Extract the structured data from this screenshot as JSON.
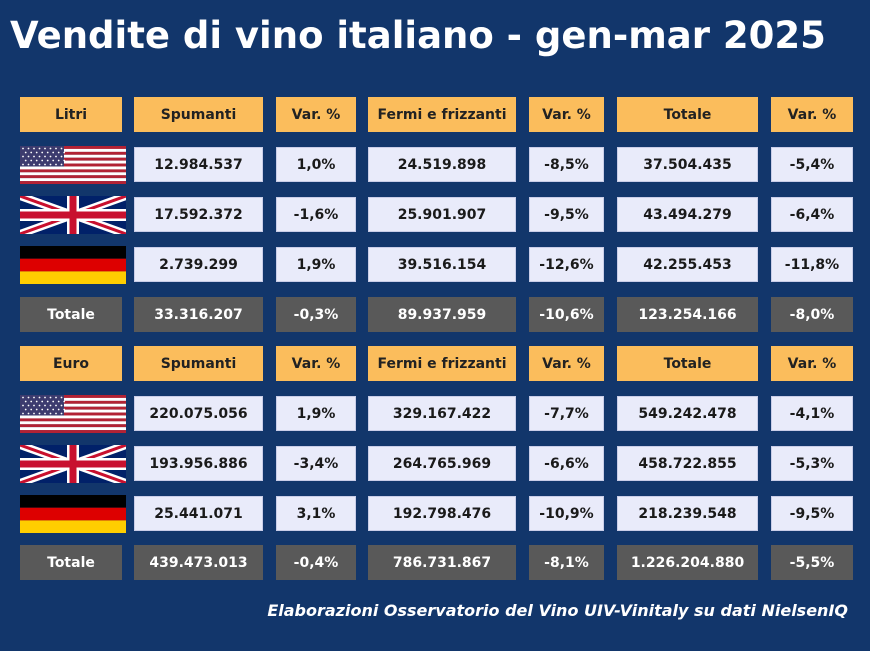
{
  "title": "Vendite di vino italiano - gen-mar 2025",
  "tables": [
    {
      "header": [
        "Litri",
        "Spumanti",
        "Var. %",
        "Fermi e frizzanti",
        "Var. %",
        "Totale",
        "Var. %"
      ],
      "rows": [
        [
          "12.984.537",
          "1,0%",
          "24.519.898",
          "-8,5%",
          "37.504.435",
          "-5,4%"
        ],
        [
          "17.592.372",
          "-1,6%",
          "25.901.907",
          "-9,5%",
          "43.494.279",
          "-6,4%"
        ],
        [
          "2.739.299",
          "1,9%",
          "39.516.154",
          "-12,6%",
          "42.255.453",
          "-11,8%"
        ]
      ],
      "total": {
        "label": "Totale",
        "values": [
          "33.316.207",
          "-0,3%",
          "89.937.959",
          "-10,6%",
          "123.254.166",
          "-8,0%"
        ]
      }
    },
    {
      "header": [
        "Euro",
        "Spumanti",
        "Var. %",
        "Fermi e frizzanti",
        "Var. %",
        "Totale",
        "Var. %"
      ],
      "rows": [
        [
          "220.075.056",
          "1,9%",
          "329.167.422",
          "-7,7%",
          "549.242.478",
          "-4,1%"
        ],
        [
          "193.956.886",
          "-3,4%",
          "264.765.969",
          "-6,6%",
          "458.722.855",
          "-5,3%"
        ],
        [
          "25.441.071",
          "3,1%",
          "192.798.476",
          "-10,9%",
          "218.239.548",
          "-9,5%"
        ]
      ],
      "total": {
        "label": "Totale",
        "values": [
          "439.473.013",
          "-0,4%",
          "786.731.867",
          "-8,1%",
          "1.226.204.880",
          "-5,5%"
        ]
      }
    }
  ],
  "footer": "Elaborazioni Osservatorio del Vino UIV-Vinitaly su dati NielsenIQ"
}
